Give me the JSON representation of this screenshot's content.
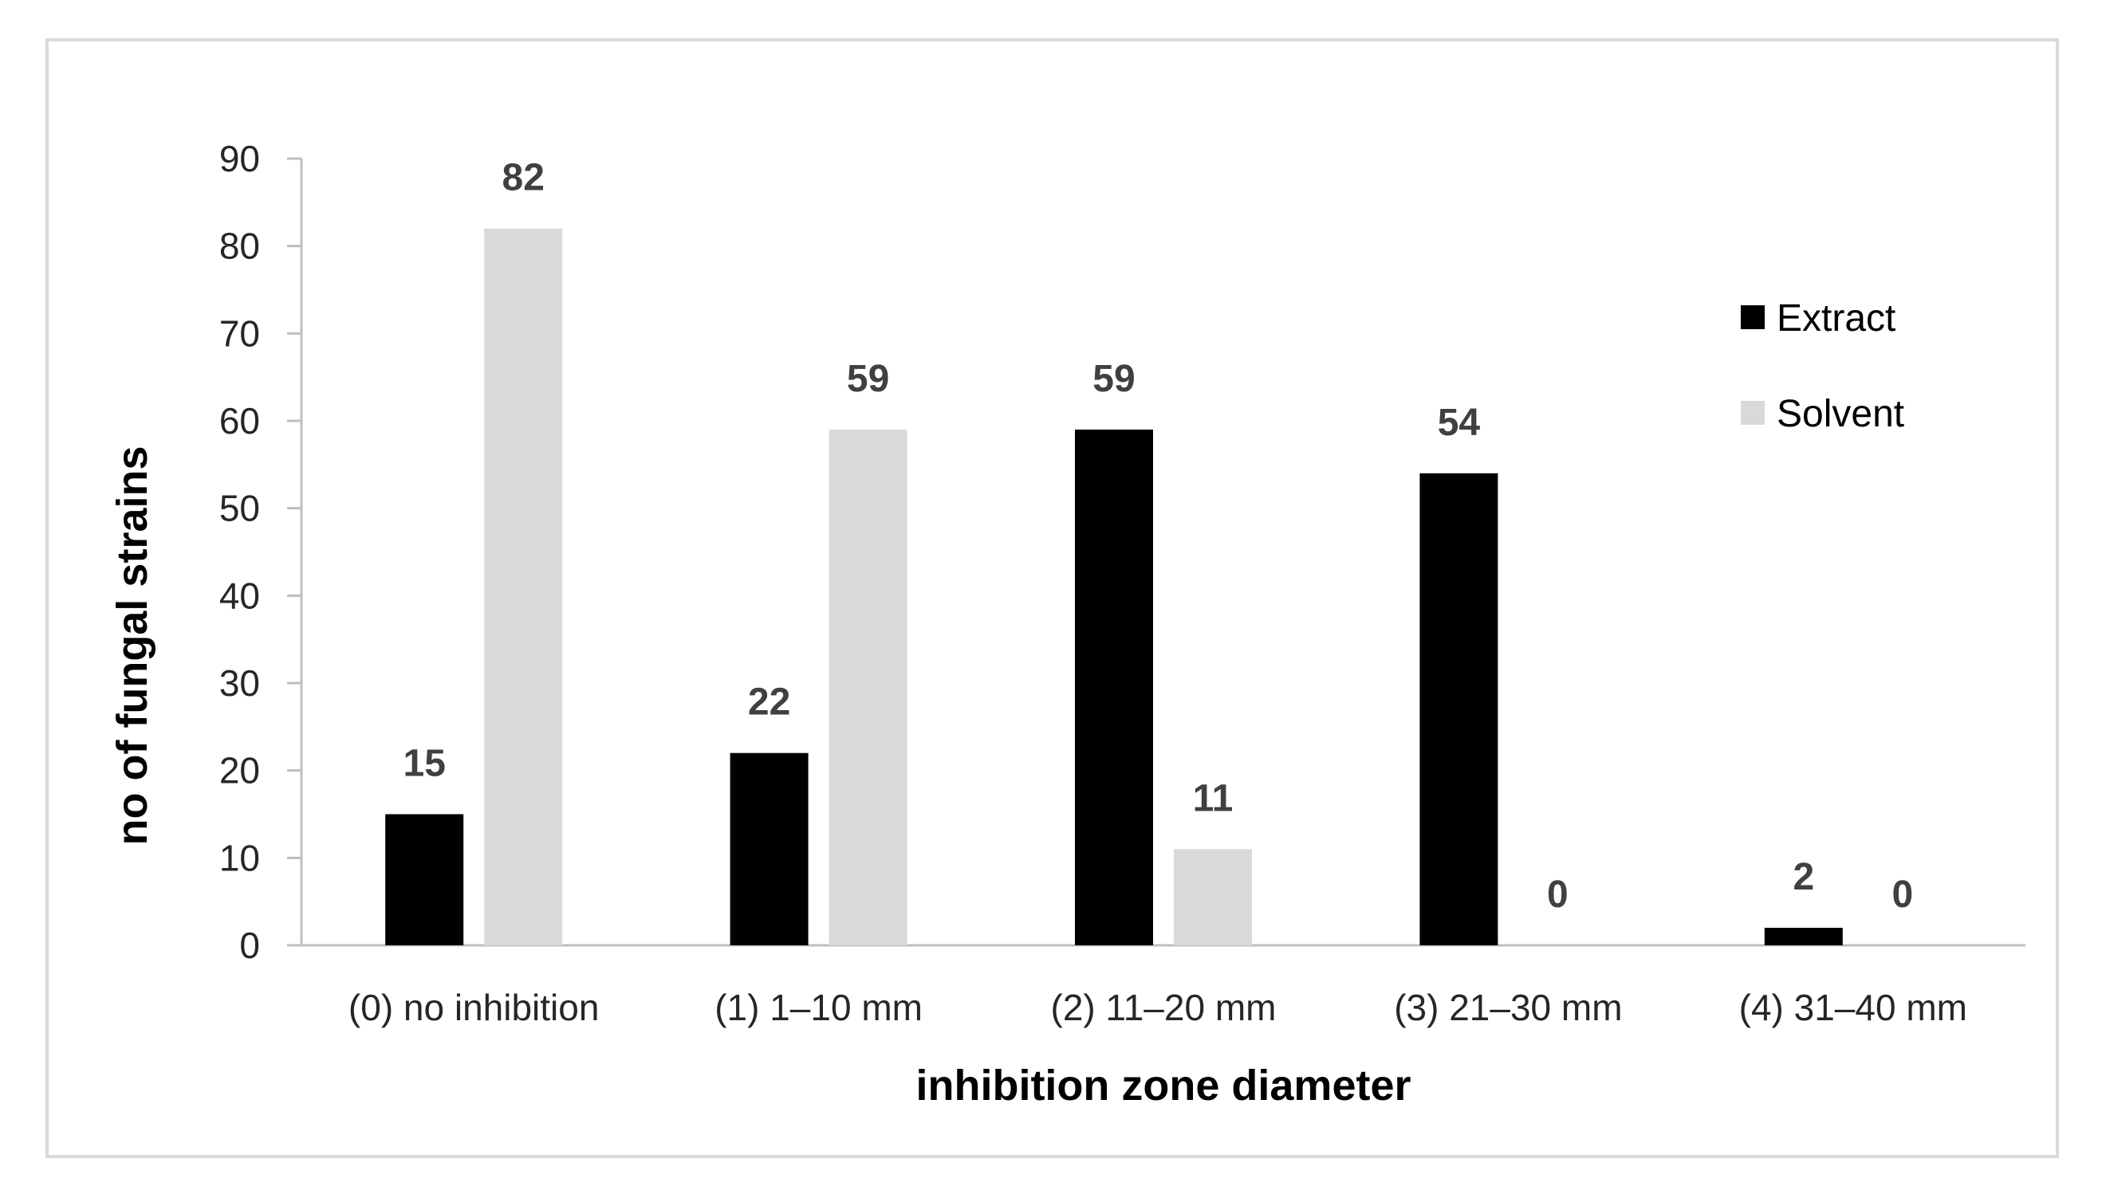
{
  "chart_data": {
    "type": "bar",
    "categories": [
      "(0) no inhibition",
      "(1)  1–10 mm",
      "(2) 11–20 mm",
      "(3)  21–30 mm",
      "(4)  31–40 mm"
    ],
    "series": [
      {
        "name": "Extract",
        "values": [
          15,
          22,
          59,
          54,
          2
        ],
        "color": "#000000"
      },
      {
        "name": "Solvent",
        "values": [
          82,
          59,
          11,
          0,
          0
        ],
        "color": "#d9d9d9"
      }
    ],
    "xlabel": "inhibition zone diameter",
    "ylabel": "no of fungal strains",
    "ylim": [
      0,
      90
    ],
    "yticks": [
      0,
      10,
      20,
      30,
      40,
      50,
      60,
      70,
      80,
      90
    ],
    "grid": false,
    "legend_position": "right",
    "data_labels": true
  }
}
